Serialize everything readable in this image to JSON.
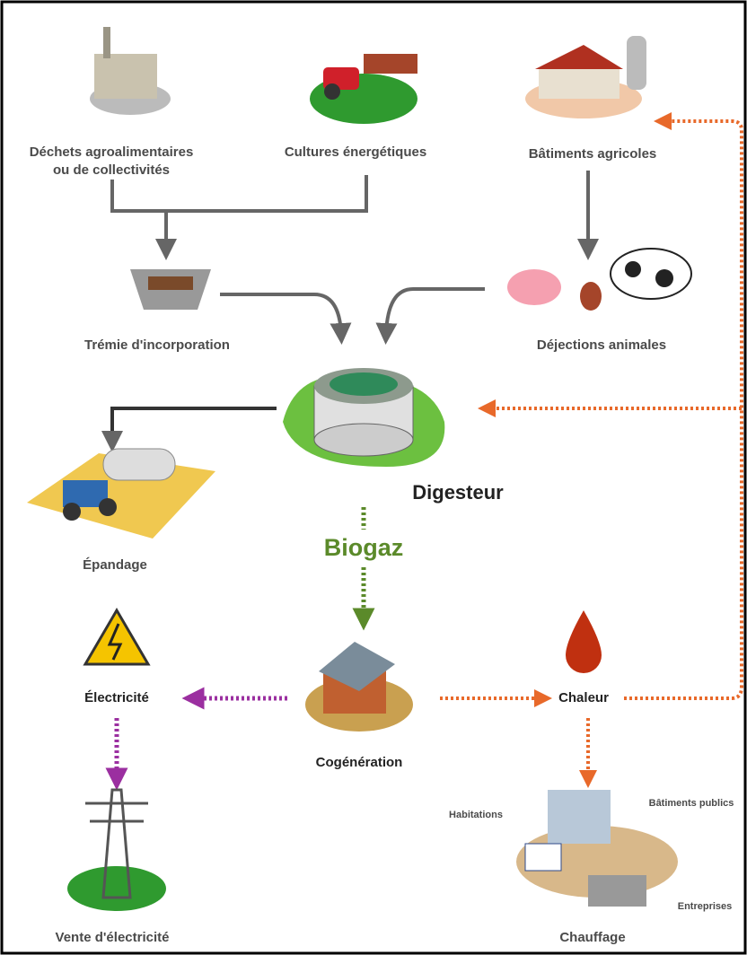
{
  "nodes": [
    {
      "label": [
        "Déchets agroalimentaires",
        "ou de collectivités"
      ]
    },
    {
      "label": "Cultures énergétiques"
    },
    {
      "label": "Bâtiments agricoles"
    },
    {
      "label": "Trémie d'incorporation"
    },
    {
      "label": "Déjections animales"
    },
    {
      "label": "Digesteur"
    },
    {
      "label": "Épandage"
    },
    {
      "label": "Biogaz"
    },
    {
      "label": "Électricité"
    },
    {
      "label": "Cogénération"
    },
    {
      "label": "Chaleur"
    },
    {
      "label": "Vente d'électricité"
    },
    {
      "label": "Chauffage"
    },
    {
      "label": "Habitations"
    },
    {
      "label": "Bâtiments publics"
    },
    {
      "label": "Entreprises"
    }
  ]
}
